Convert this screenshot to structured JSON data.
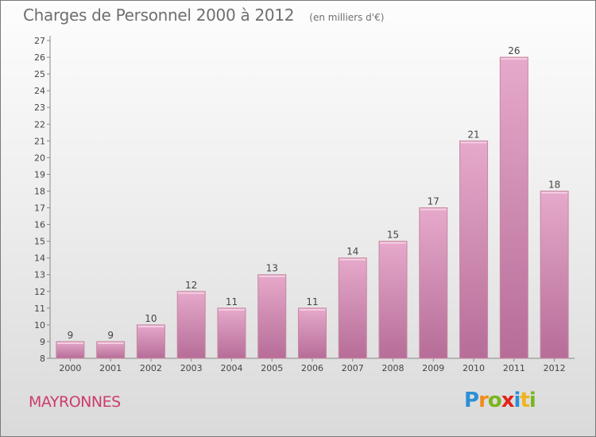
{
  "title": "Charges de Personnel 2000 à 2012",
  "subtitle": "(en milliers d'€)",
  "commune": "MAYRONNES",
  "logo": {
    "letters": [
      "P",
      "r",
      "o",
      "x",
      "i",
      "t",
      "i"
    ],
    "colors": [
      "#2b8fd6",
      "#f08c1a",
      "#7ab51d",
      "#e2231a",
      "#2b8fd6",
      "#f0b41a",
      "#7ab51d"
    ]
  },
  "colors": {
    "bar": "#d98fba",
    "bar_highlight": "#ecb5d5",
    "bar_shadow": "#b46a95",
    "axis": "#888888",
    "text": "#444444",
    "commune": "#cc3d6b"
  },
  "chart_data": {
    "type": "bar",
    "categories": [
      "2000",
      "2001",
      "2002",
      "2003",
      "2004",
      "2005",
      "2006",
      "2007",
      "2008",
      "2009",
      "2010",
      "2011",
      "2012"
    ],
    "values": [
      9,
      9,
      10,
      12,
      11,
      13,
      11,
      14,
      15,
      17,
      21,
      26,
      18
    ],
    "title": "Charges de Personnel 2000 à 2012",
    "subtitle": "(en milliers d'€)",
    "xlabel": "",
    "ylabel": "",
    "ylim": [
      8,
      27
    ],
    "yticks": [
      8,
      9,
      10,
      11,
      12,
      13,
      14,
      15,
      16,
      17,
      18,
      19,
      20,
      21,
      22,
      23,
      24,
      25,
      26,
      27
    ],
    "grid": false,
    "legend": "none"
  }
}
